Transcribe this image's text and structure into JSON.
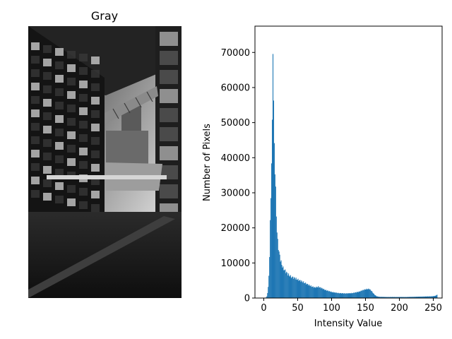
{
  "image_panel": {
    "title": "Gray",
    "colors": {
      "sky_top": "#2a2a2a",
      "sky_bright": "#cfcfcf",
      "ground": "#1a1a1a",
      "building_dark": "#141414",
      "window_light": "#bdbdbd"
    }
  },
  "chart_data": {
    "type": "bar",
    "title": "",
    "xlabel": "Intensity Value",
    "ylabel": "Number of Pixels",
    "xlim": [
      -13,
      263
    ],
    "ylim": [
      0,
      77500
    ],
    "xticks": [
      0,
      50,
      100,
      150,
      200,
      250
    ],
    "yticks": [
      0,
      10000,
      20000,
      30000,
      40000,
      50000,
      60000,
      70000
    ],
    "bar_color": "#1f77b4",
    "bins": 256,
    "anchors": [
      [
        0,
        0
      ],
      [
        1,
        50
      ],
      [
        2,
        120
      ],
      [
        3,
        200
      ],
      [
        4,
        500
      ],
      [
        5,
        1500
      ],
      [
        6,
        3000
      ],
      [
        7,
        6500
      ],
      [
        8,
        12000
      ],
      [
        9,
        21000
      ],
      [
        10,
        30000
      ],
      [
        11,
        38000
      ],
      [
        12,
        49000
      ],
      [
        13,
        74000
      ],
      [
        14,
        54000
      ],
      [
        15,
        44000
      ],
      [
        16,
        37000
      ],
      [
        17,
        30000
      ],
      [
        18,
        24000
      ],
      [
        19,
        19000
      ],
      [
        20,
        16000
      ],
      [
        22,
        13000
      ],
      [
        24,
        11000
      ],
      [
        26,
        9500
      ],
      [
        28,
        8500
      ],
      [
        30,
        8000
      ],
      [
        35,
        6800
      ],
      [
        40,
        6000
      ],
      [
        45,
        5700
      ],
      [
        50,
        5200
      ],
      [
        55,
        4800
      ],
      [
        60,
        4300
      ],
      [
        65,
        3800
      ],
      [
        70,
        3300
      ],
      [
        75,
        3000
      ],
      [
        80,
        3200
      ],
      [
        85,
        2800
      ],
      [
        90,
        2300
      ],
      [
        95,
        2000
      ],
      [
        100,
        1700
      ],
      [
        110,
        1400
      ],
      [
        120,
        1300
      ],
      [
        130,
        1400
      ],
      [
        140,
        1800
      ],
      [
        145,
        2200
      ],
      [
        150,
        2500
      ],
      [
        155,
        2600
      ],
      [
        158,
        2100
      ],
      [
        160,
        1600
      ],
      [
        163,
        900
      ],
      [
        166,
        500
      ],
      [
        170,
        350
      ],
      [
        180,
        300
      ],
      [
        190,
        300
      ],
      [
        200,
        300
      ],
      [
        210,
        300
      ],
      [
        220,
        350
      ],
      [
        230,
        400
      ],
      [
        240,
        450
      ],
      [
        248,
        500
      ],
      [
        252,
        600
      ],
      [
        253,
        700
      ],
      [
        254,
        800
      ],
      [
        255,
        900
      ]
    ]
  }
}
